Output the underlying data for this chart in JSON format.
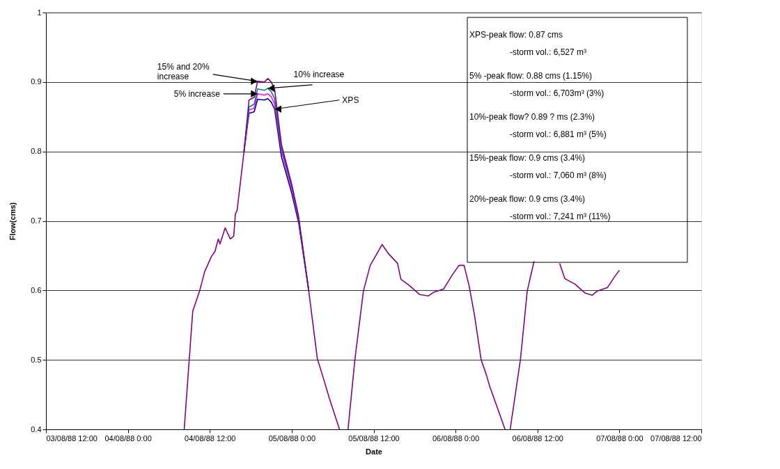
{
  "chart_data": {
    "type": "line",
    "xlabel": "Date",
    "ylabel": "Flow(cms)",
    "xlim": [
      "1988-08-03T12:00",
      "1988-08-07T12:00"
    ],
    "xticks": [
      {
        "value": "1988-08-03T12:00",
        "label": "03/08/88 12:00"
      },
      {
        "value": "1988-08-04T00:00",
        "label": "04/08/88 0:00"
      },
      {
        "value": "1988-08-04T12:00",
        "label": "04/08/88 12:00"
      },
      {
        "value": "1988-08-05T00:00",
        "label": "05/08/88 0:00"
      },
      {
        "value": "1988-08-05T12:00",
        "label": "05/08/88 12:00"
      },
      {
        "value": "1988-08-06T00:00",
        "label": "06/08/88 0:00"
      },
      {
        "value": "1988-08-06T12:00",
        "label": "06/08/88 12:00"
      },
      {
        "value": "1988-08-07T00:00",
        "label": "07/08/88 0:00"
      },
      {
        "value": "1988-08-07T12:00",
        "label": "07/08/88 12:00"
      }
    ],
    "ylim": [
      0.4,
      1
    ],
    "yticks": [
      0.4,
      0.5,
      0.6,
      0.7,
      0.8,
      0.9,
      1
    ],
    "grid": "y",
    "marker": "none",
    "line_style": "solid",
    "x": [
      "1988-08-04T08:15",
      "1988-08-04T09:30",
      "1988-08-04T10:30",
      "1988-08-04T11:15",
      "1988-08-04T12:15",
      "1988-08-04T12:45",
      "1988-08-04T13:15",
      "1988-08-04T13:30",
      "1988-08-04T14:15",
      "1988-08-04T15:00",
      "1988-08-04T15:30",
      "1988-08-04T15:45",
      "1988-08-04T16:00",
      "1988-08-04T17:00",
      "1988-08-04T17:45",
      "1988-08-04T18:30",
      "1988-08-04T19:00",
      "1988-08-04T20:00",
      "1988-08-04T20:30",
      "1988-08-04T21:00",
      "1988-08-04T21:30",
      "1988-08-04T22:30",
      "1988-08-05T00:00",
      "1988-08-05T01:00",
      "1988-08-05T02:30",
      "1988-08-05T03:45",
      "1988-08-05T04:45",
      "1988-08-05T05:30",
      "1988-08-05T07:00",
      "1988-08-05T07:30",
      "1988-08-05T08:15",
      "1988-08-05T09:15",
      "1988-08-05T10:30",
      "1988-08-05T11:30",
      "1988-08-05T13:15",
      "1988-08-05T14:15",
      "1988-08-05T15:30",
      "1988-08-05T16:00",
      "1988-08-05T17:15",
      "1988-08-05T18:45",
      "1988-08-05T20:00",
      "1988-08-05T20:45",
      "1988-08-05T22:15",
      "1988-08-05T23:30",
      "1988-08-06T00:30",
      "1988-08-06T01:15",
      "1988-08-06T02:00",
      "1988-08-06T02:45",
      "1988-08-06T03:45",
      "1988-08-06T04:30",
      "1988-08-06T05:00",
      "1988-08-06T07:15",
      "1988-08-06T07:30",
      "1988-08-06T08:00",
      "1988-08-06T09:30",
      "1988-08-06T10:30",
      "1988-08-06T11:30",
      "1988-08-06T13:00",
      "1988-08-06T15:15",
      "1988-08-06T16:00",
      "1988-08-06T17:30",
      "1988-08-06T19:00",
      "1988-08-06T20:00",
      "1988-08-06T20:45",
      "1988-08-06T22:15",
      "1988-08-06T23:15",
      "1988-08-07T00:00"
    ],
    "series": [
      {
        "color": "#000080",
        "x": [
          "1988-08-04T17:00",
          "1988-08-04T17:45",
          "1988-08-04T18:30",
          "1988-08-04T19:00",
          "1988-08-04T20:00",
          "1988-08-04T20:30",
          "1988-08-04T21:00",
          "1988-08-04T21:30",
          "1988-08-04T22:30",
          "1988-08-05T00:00",
          "1988-08-05T01:00",
          "1988-08-05T02:30"
        ],
        "values": [
          0.799,
          0.855,
          0.857,
          0.875,
          0.874,
          0.876,
          0.871,
          0.861,
          0.792,
          0.74,
          0.698,
          0.599
        ]
      },
      {
        "color": "#ff00ff",
        "x": [
          "1988-08-04T17:00",
          "1988-08-04T17:45",
          "1988-08-04T18:30",
          "1988-08-04T19:00",
          "1988-08-04T20:00",
          "1988-08-04T20:30",
          "1988-08-04T21:00",
          "1988-08-04T21:30",
          "1988-08-04T22:30",
          "1988-08-05T00:00",
          "1988-08-05T01:00",
          "1988-08-05T02:30"
        ],
        "values": [
          0.799,
          0.86,
          0.862,
          0.883,
          0.881,
          0.883,
          0.879,
          0.868,
          0.8,
          0.746,
          0.702,
          0.599
        ]
      },
      {
        "color": "#008080",
        "x": [
          "1988-08-04T17:00",
          "1988-08-04T17:45",
          "1988-08-04T18:30",
          "1988-08-04T19:00",
          "1988-08-04T20:00",
          "1988-08-04T20:30",
          "1988-08-04T21:00",
          "1988-08-04T21:30",
          "1988-08-04T22:30",
          "1988-08-05T00:00",
          "1988-08-05T01:00",
          "1988-08-05T02:30"
        ],
        "values": [
          0.799,
          0.864,
          0.868,
          0.89,
          0.888,
          0.891,
          0.886,
          0.876,
          0.805,
          0.75,
          0.705,
          0.599
        ]
      },
      {
        "color": "#800080",
        "values": [
          0.4,
          0.57,
          0.599,
          0.627,
          0.649,
          0.656,
          0.674,
          0.667,
          0.69,
          0.674,
          0.678,
          0.71,
          0.715,
          0.799,
          0.874,
          0.878,
          0.901,
          0.9,
          0.905,
          0.9,
          0.889,
          0.81,
          0.753,
          0.707,
          0.599,
          0.502,
          0.47,
          0.445,
          0.4,
          null,
          0.4,
          0.5,
          0.599,
          0.636,
          0.666,
          0.652,
          0.639,
          0.616,
          0.607,
          0.594,
          0.592,
          0.597,
          0.602,
          0.622,
          0.636,
          0.636,
          0.606,
          0.566,
          0.5,
          0.479,
          0.462,
          0.4,
          null,
          0.4,
          0.5,
          0.599,
          0.642,
          null,
          0.639,
          0.617,
          0.609,
          0.596,
          0.593,
          0.599,
          0.604,
          0.619,
          0.629
        ]
      }
    ],
    "annotations": [
      {
        "text": "15%  and 20%\nincrease",
        "x": "1988-08-04T19:00",
        "y": 0.901
      },
      {
        "text": "10% increase",
        "x": "1988-08-04T20:30",
        "y": 0.891
      },
      {
        "text": "5% increase",
        "x": "1988-08-04T19:00",
        "y": 0.883
      },
      {
        "text": "XPS",
        "x": "1988-08-04T21:30",
        "y": 0.861
      },
      "XPS-peak flow: 0.87 cms",
      "-storm vol.:  6,527 m³",
      "5%  -peak flow: 0.88 cms (1.15%)",
      "-storm vol.:  6,703m³ (3%)",
      "10%-peak flow?   0.89 ? ms (2.3%)",
      "-storm vol.:  6,881 m³  (5%)",
      "15%-peak flow:  0.9 cms (3.4%)",
      "-storm vol.: 7,060 m³  (8%)",
      "20%-peak flow:  0.9 cms (3.4%)",
      "-storm vol.:  7,241 m³ (11%)"
    ]
  }
}
